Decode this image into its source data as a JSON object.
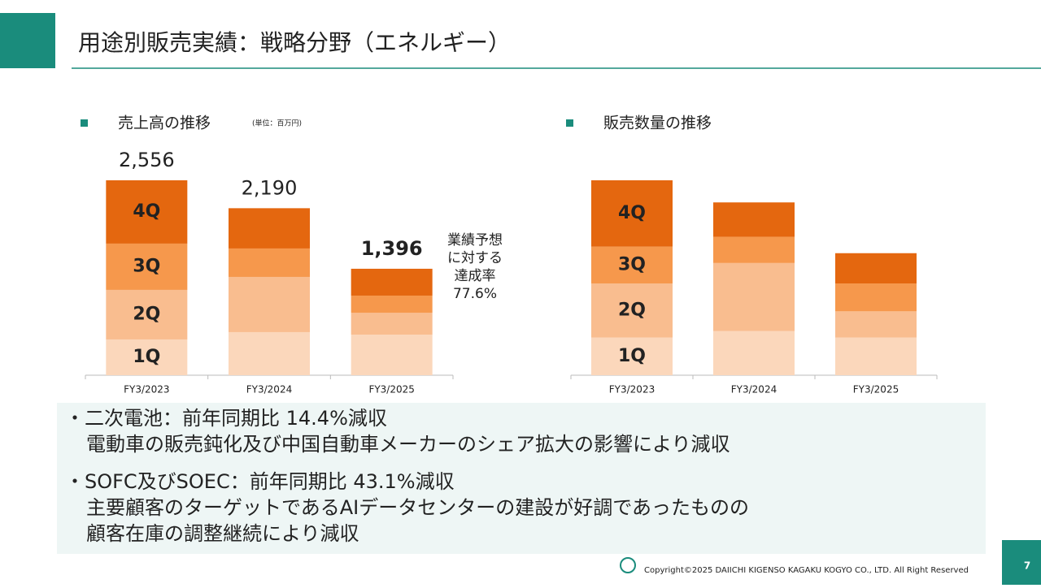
{
  "header": {
    "title": "用途別販売実績：戦略分野（エネルギー）"
  },
  "chart_data": [
    {
      "type": "bar",
      "stacked": true,
      "title": "売上高の推移",
      "unit": "(単位：百万円)",
      "categories": [
        "FY3/2023",
        "FY3/2024",
        "FY3/2025"
      ],
      "series": [
        {
          "name": "1Q",
          "color": "#fbd7bb",
          "values": [
            469,
            565,
            532
          ]
        },
        {
          "name": "2Q",
          "color": "#f9bd8f",
          "values": [
            650,
            724,
            288
          ]
        },
        {
          "name": "3Q",
          "color": "#f6984c",
          "values": [
            607,
            373,
            224
          ]
        },
        {
          "name": "4Q",
          "color": "#e4670f",
          "values": [
            830,
            528,
            352
          ]
        }
      ],
      "total_labels": [
        "2,556",
        "2,190",
        "1,396"
      ],
      "annotation": [
        "業績予想",
        "に対する",
        "達成率",
        "77.6%"
      ]
    },
    {
      "type": "bar",
      "stacked": true,
      "title": "販売数量の推移",
      "categories": [
        "FY3/2023",
        "FY3/2024",
        "FY3/2025"
      ],
      "series": [
        {
          "name": "1Q",
          "color": "#fbd7bb",
          "values": [
            46,
            54,
            46
          ]
        },
        {
          "name": "2Q",
          "color": "#f9bd8f",
          "values": [
            66,
            83,
            32
          ]
        },
        {
          "name": "3Q",
          "color": "#f6984c",
          "values": [
            45,
            32,
            34
          ]
        },
        {
          "name": "4Q",
          "color": "#e4670f",
          "values": [
            81,
            42,
            37
          ]
        }
      ]
    }
  ],
  "bullets": [
    {
      "heading": "・二次電池：前年同期比 14.4%減収",
      "lines": [
        "電動車の販売鈍化及び中国自動車メーカーのシェア拡大の影響により減収"
      ]
    },
    {
      "heading": "・SOFC及びSOEC：前年同期比 43.1%減収",
      "lines": [
        "主要顧客のターゲットであるAIデータセンターの建設が好調であったものの",
        "顧客在庫の調整継続により減収"
      ]
    }
  ],
  "footer": {
    "copyright": "Copyright©2025 DAIICHI KIGENSO KAGAKU KOGYO CO., LTD. All Right Reserved",
    "page": 7
  }
}
